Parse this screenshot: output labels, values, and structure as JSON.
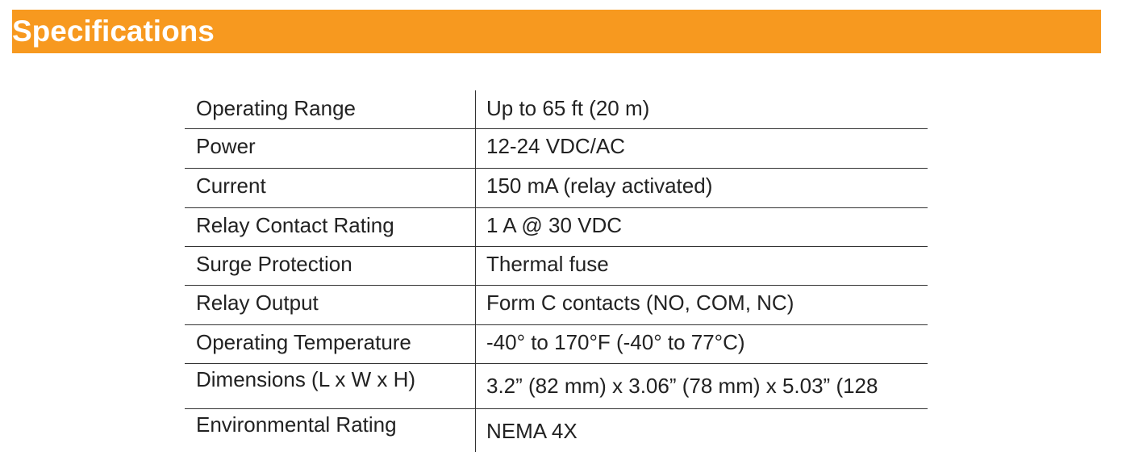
{
  "header": {
    "title": "Specifications"
  },
  "table": {
    "rows": [
      [
        "Operating Range",
        "Up to 65 ft (20 m)"
      ],
      [
        "Power",
        "12-24 VDC/AC"
      ],
      [
        "Current",
        "150 mA (relay activated)"
      ],
      [
        "Relay Contact Rating",
        "1 A @ 30 VDC"
      ],
      [
        "Surge Protection",
        "Thermal fuse"
      ],
      [
        "Relay Output",
        "Form C contacts (NO, COM, NC)"
      ],
      [
        "Operating Temperature",
        "-40° to 170°F (-40° to 77°C)"
      ],
      [
        "Dimensions (L x W x H)",
        "3.2” (82 mm) x 3.06” (78 mm) x 5.03” (128"
      ],
      [
        "Environmental Rating",
        "NEMA 4X"
      ]
    ]
  }
}
